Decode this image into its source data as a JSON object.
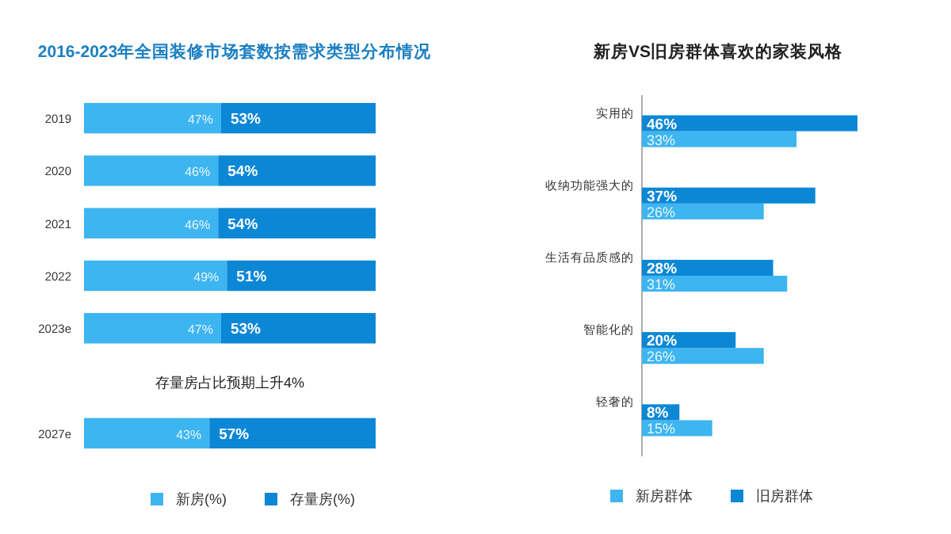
{
  "chart_data": [
    {
      "type": "bar",
      "orientation": "horizontal",
      "stacked": true,
      "title": "2016-2023年全国装修市场套数按需求类型分布情况",
      "categories": [
        "2019",
        "2020",
        "2021",
        "2022",
        "2023e",
        "2027e"
      ],
      "series": [
        {
          "name": "新房(%)",
          "color": "#3db5f0",
          "values": [
            47,
            46,
            46,
            49,
            47,
            43
          ],
          "value_labels": [
            "47%",
            "46%",
            "46%",
            "49%",
            "47%",
            "43%"
          ]
        },
        {
          "name": "存量房(%)",
          "color": "#0b87d6",
          "values": [
            53,
            54,
            54,
            51,
            53,
            57
          ],
          "value_labels": [
            "53%",
            "54%",
            "54%",
            "51%",
            "53%",
            "57%"
          ]
        }
      ],
      "annotations": [
        "存量房占比预期上升4%"
      ],
      "legend": "bottom"
    },
    {
      "type": "bar",
      "orientation": "horizontal",
      "title": "新房VS旧房群体喜欢的家装风格",
      "categories": [
        "实用的",
        "收纳功能强大的",
        "生活有品质感的",
        "智能化的",
        "轻奢的"
      ],
      "series": [
        {
          "name": "新房群体",
          "color": "#3db5f0",
          "values": [
            33,
            26,
            31,
            26,
            15
          ],
          "value_labels": [
            "33%",
            "26%",
            "31%",
            "26%",
            "15%"
          ]
        },
        {
          "name": "旧房群体",
          "color": "#0b87d6",
          "values": [
            46,
            37,
            28,
            20,
            8
          ],
          "value_labels": [
            "46%",
            "37%",
            "28%",
            "20%",
            "8%"
          ]
        }
      ],
      "legend": "bottom"
    }
  ]
}
